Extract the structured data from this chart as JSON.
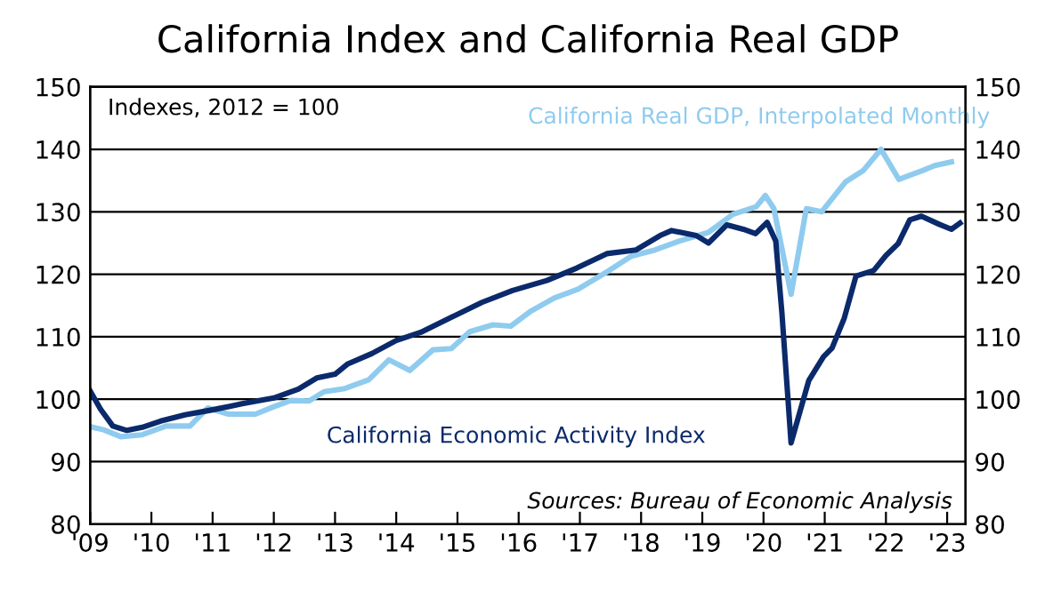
{
  "chart_data": {
    "type": "line",
    "title": "California Index and California Real GDP",
    "annotations": [
      "Indexes, 2012 = 100",
      "Sources: Bureau of Economic Analysis"
    ],
    "series": [
      {
        "name": "California Real GDP, Interpolated Monthly",
        "color": "#8fcbee",
        "x": [
          2009,
          2009.22,
          2009.5,
          2009.85,
          2010.24,
          2010.63,
          2010.92,
          2011.26,
          2011.7,
          2012.0,
          2012.28,
          2012.57,
          2012.82,
          2013.16,
          2013.55,
          2013.88,
          2014.22,
          2014.6,
          2014.9,
          2015.2,
          2015.58,
          2015.87,
          2016.2,
          2016.58,
          2016.97,
          2017.46,
          2017.84,
          2018.23,
          2018.62,
          2019.1,
          2019.5,
          2019.88,
          2020.03,
          2020.17,
          2020.45,
          2020.7,
          2020.95,
          2021.34,
          2021.63,
          2021.92,
          2022.21,
          2022.6,
          2022.8,
          2023.07
        ],
        "values": [
          95.6,
          95.1,
          94,
          94.3,
          95.7,
          95.7,
          98.6,
          97.6,
          97.6,
          98.8,
          99.8,
          99.7,
          101.2,
          101.7,
          103.1,
          106.3,
          104.6,
          107.9,
          108.1,
          110.8,
          111.9,
          111.7,
          114.1,
          116.2,
          117.6,
          120.5,
          122.9,
          123.9,
          125.3,
          126.7,
          129.6,
          130.8,
          132.6,
          130.5,
          116.8,
          130.5,
          130,
          134.8,
          136.6,
          140,
          135.2,
          136.6,
          137.4,
          138
        ]
      },
      {
        "name": "California Economic Activity Index",
        "color": "#0b2a6b",
        "x": [
          2009,
          2009.17,
          2009.37,
          2009.6,
          2009.85,
          2010.15,
          2010.55,
          2011.0,
          2011.5,
          2012.0,
          2012.4,
          2012.7,
          2013.0,
          2013.2,
          2013.6,
          2014.0,
          2014.4,
          2014.9,
          2015.4,
          2015.9,
          2016.46,
          2016.95,
          2017.44,
          2017.92,
          2018.31,
          2018.5,
          2018.9,
          2019.1,
          2019.4,
          2019.67,
          2019.87,
          2020.06,
          2020.2,
          2020.3,
          2020.45,
          2020.74,
          2020.98,
          2021.12,
          2021.32,
          2021.51,
          2021.8,
          2022.0,
          2022.2,
          2022.39,
          2022.58,
          2022.87,
          2023.07,
          2023.21
        ],
        "values": [
          101.3,
          98.4,
          95.7,
          95,
          95.5,
          96.5,
          97.5,
          98.3,
          99.3,
          100.2,
          101.6,
          103.4,
          104,
          105.6,
          107.3,
          109.4,
          110.7,
          113.1,
          115.5,
          117.4,
          119,
          121,
          123.3,
          123.9,
          126.2,
          127,
          126.2,
          125,
          127.9,
          127.2,
          126.5,
          128.3,
          125.3,
          113.9,
          93,
          103,
          106.8,
          108.2,
          113,
          119.7,
          120.6,
          123,
          124.9,
          128.7,
          129.3,
          128,
          127.2,
          128.2
        ]
      }
    ],
    "xlim": [
      2009,
      2023.3
    ],
    "xticks": [
      {
        "value": 2009,
        "label": "'09"
      },
      {
        "value": 2010,
        "label": "'10"
      },
      {
        "value": 2011,
        "label": "'11"
      },
      {
        "value": 2012,
        "label": "'12"
      },
      {
        "value": 2013,
        "label": "'13"
      },
      {
        "value": 2014,
        "label": "'14"
      },
      {
        "value": 2015,
        "label": "'15"
      },
      {
        "value": 2016,
        "label": "'16"
      },
      {
        "value": 2017,
        "label": "'17"
      },
      {
        "value": 2018,
        "label": "'18"
      },
      {
        "value": 2019,
        "label": "'19"
      },
      {
        "value": 2020,
        "label": "'20"
      },
      {
        "value": 2021,
        "label": "'21"
      },
      {
        "value": 2022,
        "label": "'22"
      },
      {
        "value": 2023,
        "label": "'23"
      }
    ],
    "ylim": [
      80,
      150
    ],
    "yticks": [
      80,
      90,
      100,
      110,
      120,
      130,
      140,
      150
    ],
    "y2lim": [
      80,
      150
    ],
    "y2ticks": [
      80,
      90,
      100,
      110,
      120,
      130,
      140,
      150
    ],
    "grid": "y",
    "legend": false,
    "line_style": "solid",
    "marker": "none"
  }
}
